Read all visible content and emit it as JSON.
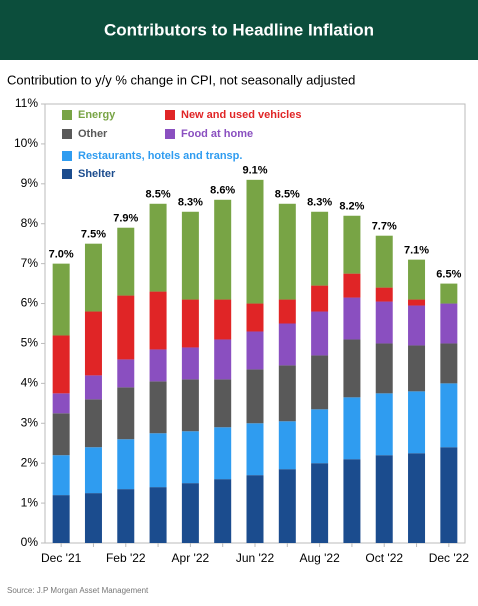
{
  "chart_data": {
    "type": "stacked_bar",
    "title": "Contributors to Headline Inflation",
    "subtitle": "Contribution to y/y % change in CPI, not seasonally adjusted",
    "source": "Source: J.P Morgan Asset Management",
    "categories": [
      "Dec '21",
      null,
      "Feb '22",
      null,
      "Apr '22",
      null,
      "Jun '22",
      null,
      "Aug '22",
      null,
      "Oct '22",
      null,
      "Dec '22"
    ],
    "series": [
      {
        "name": "Shelter",
        "color": "#1b4c8e",
        "values": [
          1.2,
          1.25,
          1.35,
          1.4,
          1.5,
          1.6,
          1.7,
          1.85,
          2.0,
          2.1,
          2.2,
          2.25,
          2.4
        ]
      },
      {
        "name": "Restaurants, hotels and transp.",
        "color": "#2f9cf0",
        "values": [
          1.0,
          1.15,
          1.25,
          1.35,
          1.3,
          1.3,
          1.3,
          1.2,
          1.35,
          1.55,
          1.55,
          1.55,
          1.6
        ]
      },
      {
        "name": "Other",
        "color": "#595959",
        "values": [
          1.05,
          1.2,
          1.3,
          1.3,
          1.3,
          1.2,
          1.35,
          1.4,
          1.35,
          1.45,
          1.25,
          1.15,
          1.0
        ]
      },
      {
        "name": "Food at home",
        "color": "#8a4fc0",
        "values": [
          0.5,
          0.6,
          0.7,
          0.8,
          0.8,
          1.0,
          0.95,
          1.05,
          1.1,
          1.05,
          1.05,
          1.0,
          1.0
        ]
      },
      {
        "name": "New and used vehicles",
        "color": "#e02526",
        "values": [
          1.45,
          1.6,
          1.6,
          1.45,
          1.2,
          1.0,
          0.7,
          0.6,
          0.65,
          0.6,
          0.35,
          0.15,
          0.0
        ]
      },
      {
        "name": "Energy",
        "color": "#78a445",
        "values": [
          1.8,
          1.7,
          1.7,
          2.2,
          2.2,
          2.5,
          3.1,
          2.4,
          1.85,
          1.45,
          1.3,
          1.0,
          0.5
        ]
      }
    ],
    "totals": [
      7.0,
      7.5,
      7.9,
      8.5,
      8.3,
      8.6,
      9.1,
      8.5,
      8.3,
      8.2,
      7.7,
      7.1,
      6.5
    ],
    "total_labels": [
      "7.0%",
      "7.5%",
      "7.9%",
      "8.5%",
      "8.3%",
      "8.6%",
      "9.1%",
      "8.5%",
      "8.3%",
      "8.2%",
      "7.7%",
      "7.1%",
      "6.5%"
    ],
    "ylim": [
      0,
      11
    ],
    "yticks": [
      {
        "value": 0,
        "label": "0%"
      },
      {
        "value": 1,
        "label": "1%"
      },
      {
        "value": 2,
        "label": "2%"
      },
      {
        "value": 3,
        "label": "3%"
      },
      {
        "value": 4,
        "label": "4%"
      },
      {
        "value": 5,
        "label": "5%"
      },
      {
        "value": 6,
        "label": "6%"
      },
      {
        "value": 7,
        "label": "7%"
      },
      {
        "value": 8,
        "label": "8%"
      },
      {
        "value": 9,
        "label": "9%"
      },
      {
        "value": 10,
        "label": "10%"
      },
      {
        "value": 11,
        "label": "11%"
      }
    ]
  }
}
